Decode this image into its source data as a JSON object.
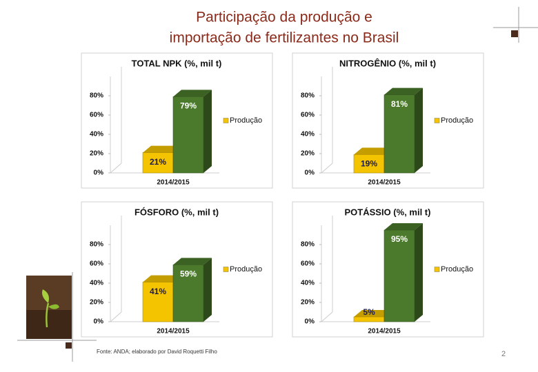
{
  "slide": {
    "title_line1": "Participação da produção e",
    "title_line2": "importação de fertilizantes no Brasil",
    "source": "Fonte: ANDA; elaborado por David Roquetti Filho",
    "page": "2"
  },
  "chart_data": [
    {
      "type": "bar",
      "title": "TOTAL NPK (%, mil t)",
      "categories": [
        "2014/2015"
      ],
      "series": [
        {
          "name": "Produção",
          "color": "#f5c400",
          "values": [
            21
          ],
          "value_labels": [
            "21%"
          ]
        },
        {
          "color": "#4b7a2c",
          "values": [
            79
          ],
          "value_labels": [
            "79%"
          ]
        }
      ],
      "ylim": [
        0,
        100
      ],
      "yticks": [
        {
          "value": 0,
          "label": "0%"
        },
        {
          "value": 20,
          "label": "20%"
        },
        {
          "value": 40,
          "label": "40%"
        },
        {
          "value": 60,
          "label": "60%"
        },
        {
          "value": 80,
          "label": "80%"
        }
      ],
      "legend": "right"
    },
    {
      "type": "bar",
      "title": "NITROGÊNIO (%, mil t)",
      "categories": [
        "2014/2015"
      ],
      "series": [
        {
          "name": "Produção",
          "color": "#f5c400",
          "values": [
            19
          ],
          "value_labels": [
            "19%"
          ]
        },
        {
          "color": "#4b7a2c",
          "values": [
            81
          ],
          "value_labels": [
            "81%"
          ]
        }
      ],
      "ylim": [
        0,
        100
      ],
      "yticks": [
        {
          "value": 0,
          "label": "0%"
        },
        {
          "value": 20,
          "label": "20%"
        },
        {
          "value": 40,
          "label": "40%"
        },
        {
          "value": 60,
          "label": "60%"
        },
        {
          "value": 80,
          "label": "80%"
        }
      ],
      "legend": "right"
    },
    {
      "type": "bar",
      "title": "FÓSFORO (%, mil t)",
      "categories": [
        "2014/2015"
      ],
      "series": [
        {
          "name": "Produção",
          "color": "#f5c400",
          "values": [
            41
          ],
          "value_labels": [
            "41%"
          ]
        },
        {
          "color": "#4b7a2c",
          "values": [
            59
          ],
          "value_labels": [
            "59%"
          ]
        }
      ],
      "ylim": [
        0,
        100
      ],
      "yticks": [
        {
          "value": 0,
          "label": "0%"
        },
        {
          "value": 20,
          "label": "20%"
        },
        {
          "value": 40,
          "label": "40%"
        },
        {
          "value": 60,
          "label": "60%"
        },
        {
          "value": 80,
          "label": "80%"
        }
      ],
      "legend": "right"
    },
    {
      "type": "bar",
      "title": "POTÁSSIO (%, mil t)",
      "categories": [
        "2014/2015"
      ],
      "series": [
        {
          "name": "Produção",
          "color": "#f5c400",
          "values": [
            5
          ],
          "value_labels": [
            "5%"
          ]
        },
        {
          "color": "#4b7a2c",
          "values": [
            95
          ],
          "value_labels": [
            "95%"
          ]
        }
      ],
      "ylim": [
        0,
        100
      ],
      "yticks": [
        {
          "value": 0,
          "label": "0%"
        },
        {
          "value": 20,
          "label": "20%"
        },
        {
          "value": 40,
          "label": "40%"
        },
        {
          "value": 60,
          "label": "60%"
        },
        {
          "value": 80,
          "label": "80%"
        }
      ],
      "legend": "right"
    }
  ]
}
